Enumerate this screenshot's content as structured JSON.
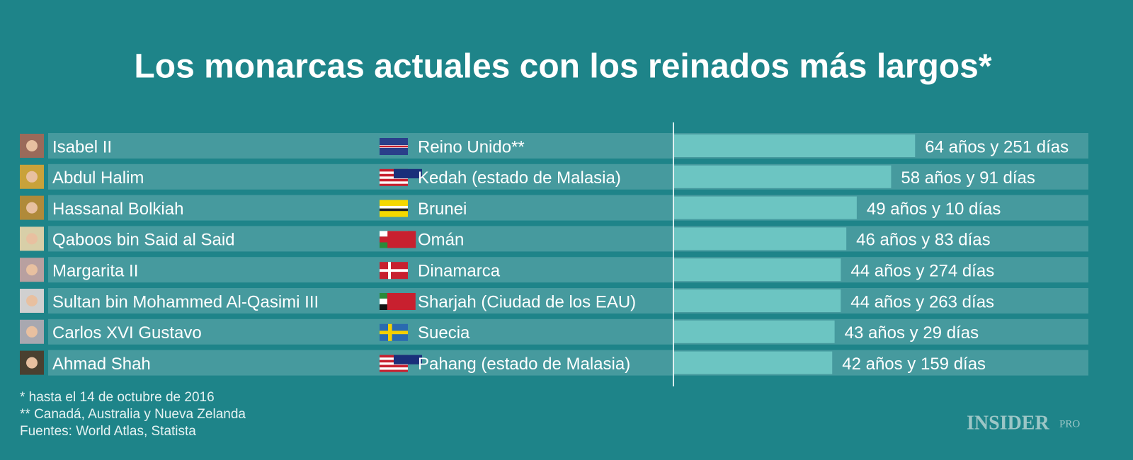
{
  "chart_data": {
    "type": "bar",
    "orientation": "horizontal",
    "title": "Los monarcas actuales con los reinados más largos*",
    "categories": [
      "Isabel II",
      "Abdul Halim",
      "Hassanal Bolkiah",
      "Qaboos bin Said al Said",
      "Margarita II",
      "Sultan bin Mohammed Al-Qasimi III",
      "Carlos XVI Gustavo",
      "Ahmad Shah"
    ],
    "countries": [
      "Reino Unido**",
      "Kedah (estado de Malasia)",
      "Brunei",
      "Omán",
      "Dinamarca",
      "Sharjah (Ciudad de los EAU)",
      "Suecia",
      "Pahang (estado de Malasia)"
    ],
    "values": [
      64.69,
      58.25,
      49.03,
      46.23,
      44.75,
      44.72,
      43.08,
      42.44
    ],
    "value_labels": [
      "64 años y 251 días",
      "58 años y 91 días",
      "49 años y 10 días",
      "46 años y 83 días",
      "44 años y 274 días",
      "44 años y 263 días",
      "43 años y 29 días",
      "42 años y 159 días"
    ],
    "color": "#6cc5c2"
  },
  "footnotes": [
    "* hasta el 14 de octubre de 2016",
    "** Canadá, Australia y Nueva Zelanda",
    "Fuentes: World Atlas, Statista"
  ],
  "logo": {
    "text": "INSIDER",
    "badge": "PRO"
  }
}
